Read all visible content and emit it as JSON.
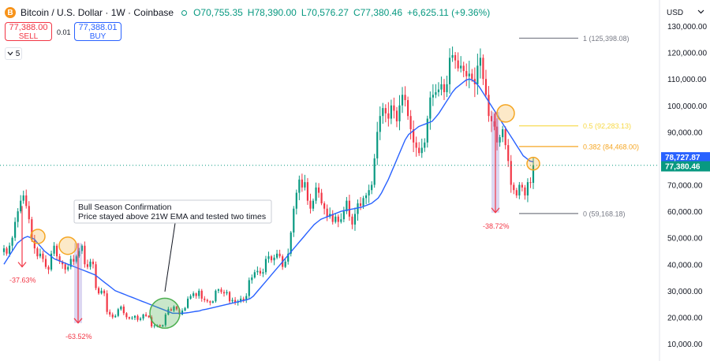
{
  "header": {
    "symbol": "Bitcoin / U.S. Dollar · 1W · Coinbase",
    "coin_glyph": "B",
    "open_label": "O",
    "open": "70,755.35",
    "high_label": "H",
    "high": "78,390.00",
    "low_label": "L",
    "low": "70,576.27",
    "close_label": "C",
    "close": "77,380.46",
    "change": "+6,625.11 (+9.36%)"
  },
  "trade": {
    "sell_price": "77,388.00",
    "sell_label": "SELL",
    "spread": "0.01",
    "buy_price": "77,388.01",
    "buy_label": "BUY"
  },
  "indicator_count": "5",
  "currency": "USD",
  "colors": {
    "up": "#089981",
    "down": "#f23645",
    "ema": "#2962ff",
    "fib_top": "#787b86",
    "fib_half": "#f7d842",
    "fib_382": "#f5a623",
    "circle_orange": "#f5a623",
    "circle_green": "#4caf50",
    "drawdown": "#9c8bd9"
  },
  "chart_data": {
    "type": "candlestick",
    "timeframe": "1W",
    "y_axis_ticks": [
      130000,
      120000,
      110000,
      100000,
      90000,
      80000,
      70000,
      60000,
      50000,
      40000,
      30000,
      20000,
      10000
    ],
    "y_tick_labels": [
      "130,000.00",
      "120,000.00",
      "110,000.00",
      "100,000.00",
      "90,000.00",
      "80,000.00",
      "70,000.00",
      "60,000.00",
      "50,000.00",
      "40,000.00",
      "30,000.00",
      "20,000.00",
      "10,000.00"
    ],
    "ylim": [
      6500,
      135000
    ],
    "y_scale": "linear",
    "approx_closes": [
      46000,
      44000,
      47000,
      50000,
      56000,
      60000,
      64000,
      66000,
      62000,
      57000,
      49000,
      46000,
      43000,
      44000,
      42000,
      39000,
      38000,
      44000,
      47000,
      43000,
      41000,
      40000,
      38000,
      39000,
      42000,
      41000,
      43000,
      45000,
      47000,
      40000,
      39000,
      41000,
      40000,
      31000,
      29000,
      30000,
      29000,
      22000,
      21000,
      20000,
      20500,
      23000,
      24000,
      21500,
      20000,
      19500,
      19800,
      20500,
      19000,
      19500,
      21000,
      20500,
      20000,
      16500,
      16800,
      17000,
      16500,
      17000,
      21000,
      23000,
      22500,
      24000,
      23000,
      21000,
      22500,
      23500,
      27000,
      28000,
      29000,
      28000,
      30000,
      27000,
      26500,
      26000,
      25500,
      26000,
      30000,
      30500,
      29500,
      29000,
      29500,
      26000,
      26500,
      25500,
      26000,
      27000,
      26500,
      28000,
      34000,
      35000,
      37000,
      37500,
      36500,
      37000,
      42000,
      43000,
      41500,
      42500,
      44000,
      43000,
      39000,
      41000,
      44000,
      52000,
      61000,
      67000,
      72000,
      69000,
      71000,
      64000,
      61000,
      64000,
      69000,
      67000,
      63000,
      61000,
      58000,
      59000,
      56000,
      58000,
      56000,
      57000,
      60000,
      64000,
      58000,
      55000,
      59000,
      63000,
      62000,
      65000,
      66000,
      68000,
      70000,
      80000,
      90000,
      96000,
      99000,
      97000,
      95000,
      100000,
      98000,
      94000,
      100000,
      104000,
      102000,
      96000,
      91000,
      86000,
      84000,
      82000,
      84000,
      86000,
      95000,
      103000,
      104000,
      105000,
      106000,
      108000,
      105000,
      108000,
      118000,
      119000,
      117000,
      114000,
      115000,
      113000,
      111000,
      112000,
      110000,
      108000,
      115000,
      118000,
      110000,
      104000,
      96000,
      94000,
      92000,
      86000,
      88000,
      91000,
      85000,
      79000,
      70000,
      68000,
      66000,
      70000,
      69000,
      66000,
      71000,
      70755,
      77380
    ],
    "series": [
      {
        "name": "EMA (21W)",
        "approx_values": [
          40000,
          42000,
          44000,
          46000,
          48000,
          49000,
          50000,
          50500,
          50000,
          49500,
          48000,
          46500,
          45000,
          44000,
          43000,
          42000,
          41500,
          41000,
          40500,
          40000,
          39500,
          39000,
          38500,
          38000,
          37500,
          37000,
          36500,
          36000,
          35000,
          34000,
          33000,
          32000,
          31000,
          30000,
          29500,
          29000,
          28500,
          28000,
          27500,
          27000,
          26500,
          26000,
          25500,
          25000,
          24500,
          24000,
          23500,
          23000,
          22500,
          22000,
          21500,
          21500,
          21500,
          21500,
          21600,
          21800,
          22000,
          22200,
          22400,
          22800,
          23000,
          23300,
          23600,
          23900,
          24200,
          24500,
          24800,
          25100,
          25400,
          25700,
          26000,
          26300,
          26600,
          27000,
          28000,
          29500,
          31000,
          32500,
          34000,
          35500,
          37000,
          38500,
          40000,
          41500,
          43000,
          44500,
          46000,
          47500,
          49000,
          50500,
          52000,
          53500,
          55000,
          56000,
          57000,
          57500,
          58000,
          58500,
          59000,
          59500,
          60000,
          60300,
          60500,
          60800,
          61000,
          61300,
          61500,
          62000,
          62500,
          63000,
          64000,
          65000,
          67000,
          69500,
          72000,
          75000,
          78000,
          81000,
          84000,
          87000,
          89000,
          90000,
          91000,
          92000,
          92500,
          93000,
          93500,
          94000,
          95500,
          97000,
          99000,
          101000,
          103000,
          105000,
          106500,
          107500,
          108500,
          109500,
          110000,
          109500,
          108500,
          107000,
          105000,
          103000,
          101000,
          99000,
          97000,
          95000,
          93000,
          91000,
          89000,
          87000,
          85000,
          83000,
          81000,
          80000,
          79000,
          78727.87
        ]
      }
    ],
    "current_price": "77,380.46",
    "ema_value": "78,727.87",
    "fib_levels": [
      {
        "label": "1 (125,398.08)",
        "value": 125398.08
      },
      {
        "label": "0.5 (92,283.13)",
        "value": 92283.13
      },
      {
        "label": "0.382 (84,468.00)",
        "value": 84468.0
      },
      {
        "label": "0 (59,168.18)",
        "value": 59168.18
      }
    ],
    "drawdowns": [
      "-37.63%",
      "-63.52%",
      "-38.72%"
    ],
    "annotation": {
      "title": "Bull Season Confirmation",
      "body": "Price stayed above 21W EMA and tested two times"
    }
  }
}
